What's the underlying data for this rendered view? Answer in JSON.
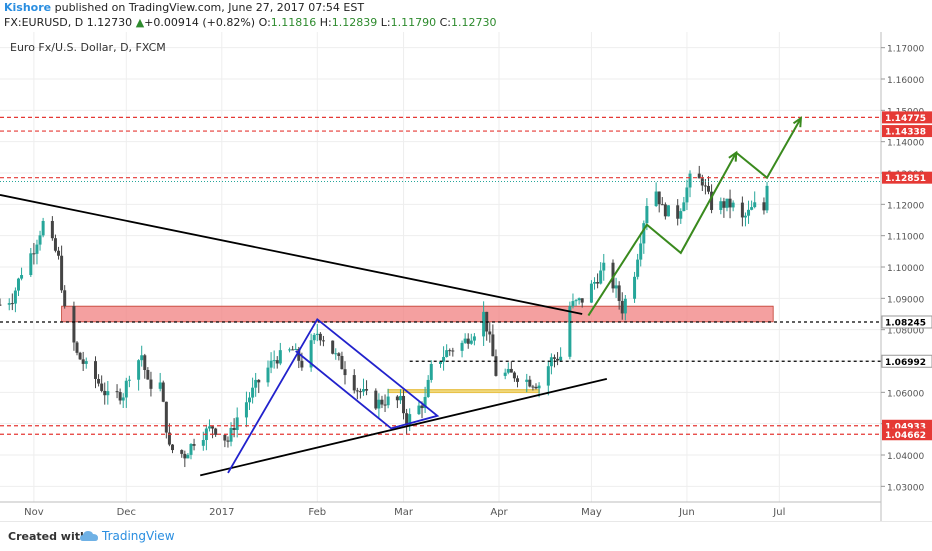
{
  "header": {
    "author": "Kishore",
    "published": "published on TradingView.com, June 27, 2017 07:54 EST",
    "symbol": "FX:EURUSD, D",
    "last": "1.12730",
    "change_arrow": "▲",
    "change": "+0.00914 (+0.82%)",
    "o_label": "O:",
    "o": "1.11816",
    "h_label": "H:",
    "h": "1.12839",
    "l_label": "L:",
    "l": "1.11790",
    "c_label": "C:",
    "c": "1.12730"
  },
  "footer": {
    "created_with": "Created with",
    "brand": "TradingView"
  },
  "colors": {
    "up": "#26a69a",
    "down": "#444444",
    "resistance": "#e53935",
    "zone": "#f08080",
    "arrow": "#3a8a1e",
    "wedge": "#2222cc",
    "box": "#e8c24a",
    "trend": "#000000",
    "price_label_bg": "#e53935",
    "axis_text": "#555555"
  },
  "chart_data": {
    "type": "candlestick",
    "title": "Euro Fx/U.S. Dollar, D, FXCM",
    "ylim": [
      1.025,
      1.175
    ],
    "y_ticks": [
      1.03,
      1.04,
      1.05,
      1.06,
      1.07,
      1.08,
      1.09,
      1.1,
      1.11,
      1.12,
      1.13,
      1.14,
      1.15,
      1.16,
      1.17
    ],
    "y_tick_labels": [
      "1.03000",
      "1.04000",
      "1.05000",
      "1.06000",
      "1.07000",
      "1.08000",
      "1.09000",
      "1.10000",
      "1.11000",
      "1.12000",
      "1.13000",
      "1.14000",
      "1.15000",
      "1.16000",
      "1.17000"
    ],
    "x_ticks": [
      {
        "label": "Nov",
        "date": "2016-11-01"
      },
      {
        "label": "Dec",
        "date": "2016-12-01"
      },
      {
        "label": "2017",
        "date": "2017-01-01"
      },
      {
        "label": "Feb",
        "date": "2017-02-01"
      },
      {
        "label": "Mar",
        "date": "2017-03-01"
      },
      {
        "label": "Apr",
        "date": "2017-04-01"
      },
      {
        "label": "May",
        "date": "2017-05-01"
      },
      {
        "label": "Jun",
        "date": "2017-06-01"
      },
      {
        "label": "Jul",
        "date": "2017-07-01"
      }
    ],
    "xlim": [
      "2016-10-21",
      "2017-08-03"
    ],
    "price_anchors": [
      [
        "2016-10-21",
        1.088
      ],
      [
        "2016-10-25",
        1.09
      ],
      [
        "2016-10-28",
        1.0985
      ],
      [
        "2016-11-01",
        1.106
      ],
      [
        "2016-11-04",
        1.114
      ],
      [
        "2016-11-08",
        1.105
      ],
      [
        "2016-11-09",
        1.1025
      ],
      [
        "2016-11-11",
        1.086
      ],
      [
        "2016-11-15",
        1.072
      ],
      [
        "2016-11-22",
        1.063
      ],
      [
        "2016-11-25",
        1.0585
      ],
      [
        "2016-11-30",
        1.0595
      ],
      [
        "2016-12-02",
        1.066
      ],
      [
        "2016-12-06",
        1.072
      ],
      [
        "2016-12-08",
        1.0625
      ],
      [
        "2016-12-12",
        1.0625
      ],
      [
        "2016-12-15",
        1.042
      ],
      [
        "2016-12-20",
        1.04
      ],
      [
        "2016-12-23",
        1.0445
      ],
      [
        "2016-12-29",
        1.049
      ],
      [
        "2017-01-03",
        1.0445
      ],
      [
        "2017-01-06",
        1.052
      ],
      [
        "2017-01-12",
        1.062
      ],
      [
        "2017-01-18",
        1.0705
      ],
      [
        "2017-01-24",
        1.0735
      ],
      [
        "2017-01-27",
        1.069
      ],
      [
        "2017-02-01",
        1.079
      ],
      [
        "2017-02-03",
        1.0775
      ],
      [
        "2017-02-08",
        1.07
      ],
      [
        "2017-02-14",
        1.061
      ],
      [
        "2017-02-20",
        1.0565
      ],
      [
        "2017-02-24",
        1.0575
      ],
      [
        "2017-02-28",
        1.057
      ],
      [
        "2017-03-02",
        1.051
      ],
      [
        "2017-03-08",
        1.0575
      ],
      [
        "2017-03-10",
        1.0675
      ],
      [
        "2017-03-15",
        1.073
      ],
      [
        "2017-03-20",
        1.0755
      ],
      [
        "2017-03-24",
        1.0795
      ],
      [
        "2017-03-27",
        1.085
      ],
      [
        "2017-03-29",
        1.0765
      ],
      [
        "2017-03-31",
        1.066
      ],
      [
        "2017-04-06",
        1.0655
      ],
      [
        "2017-04-11",
        1.0635
      ],
      [
        "2017-04-14",
        1.0625
      ],
      [
        "2017-04-18",
        1.0705
      ],
      [
        "2017-04-21",
        1.0715
      ],
      [
        "2017-04-24",
        1.0875
      ],
      [
        "2017-04-28",
        1.0895
      ],
      [
        "2017-05-05",
        1.0995
      ],
      [
        "2017-05-09",
        1.0925
      ],
      [
        "2017-05-11",
        1.0865
      ],
      [
        "2017-05-15",
        1.0985
      ],
      [
        "2017-05-19",
        1.1205
      ],
      [
        "2017-05-22",
        1.1245
      ],
      [
        "2017-05-24",
        1.1185
      ],
      [
        "2017-05-29",
        1.1165
      ],
      [
        "2017-06-02",
        1.128
      ],
      [
        "2017-06-06",
        1.1275
      ],
      [
        "2017-06-09",
        1.1195
      ],
      [
        "2017-06-14",
        1.12
      ],
      [
        "2017-06-16",
        1.1195
      ],
      [
        "2017-06-19",
        1.115
      ],
      [
        "2017-06-23",
        1.1195
      ],
      [
        "2017-06-26",
        1.1182
      ],
      [
        "2017-06-27",
        1.1273
      ]
    ],
    "levels": {
      "dashed_red": [
        {
          "label": "1.14775",
          "value": 1.14775
        },
        {
          "label": "1.14338",
          "value": 1.14338
        },
        {
          "label": "1.12851",
          "value": 1.12851
        },
        {
          "label": "1.04933",
          "value": 1.04933
        },
        {
          "label": "1.04662",
          "value": 1.04662
        }
      ],
      "dashed_black": [
        {
          "label": "1.08245",
          "value": 1.08245
        },
        {
          "label": "1.06992",
          "value": 1.06992
        }
      ],
      "last_price": 1.1273
    },
    "zone": {
      "from": "2016-11-10",
      "to": "2017-06-29",
      "low": 1.0825,
      "high": 1.0875
    },
    "yellow_box": {
      "from": "2017-02-24",
      "to": "2017-04-14",
      "low": 1.06,
      "high": 1.0608
    },
    "trendlines": [
      {
        "name": "falling-trendline",
        "p1": [
          "2016-10-21",
          1.123
        ],
        "p2": [
          "2017-04-28",
          1.085
        ]
      },
      {
        "name": "rising-trendline",
        "p1": [
          "2016-12-25",
          1.0335
        ],
        "p2": [
          "2017-05-06",
          1.0643
        ]
      }
    ],
    "wedge": [
      [
        "2017-01-03",
        1.0343
      ],
      [
        "2017-02-01",
        1.0833
      ],
      [
        "2017-03-12",
        1.0525
      ],
      [
        "2017-02-25",
        1.0485
      ],
      [
        "2017-01-25",
        1.0732
      ]
    ],
    "projection_arrows": [
      [
        [
          "2017-04-30",
          1.0845
        ],
        [
          "2017-05-19",
          1.1135
        ],
        [
          "2017-05-30",
          1.1045
        ],
        [
          "2017-06-17",
          1.1365
        ]
      ],
      [
        [
          "2017-06-17",
          1.1365
        ],
        [
          "2017-06-27",
          1.1285
        ],
        [
          "2017-07-08",
          1.1475
        ]
      ]
    ]
  }
}
